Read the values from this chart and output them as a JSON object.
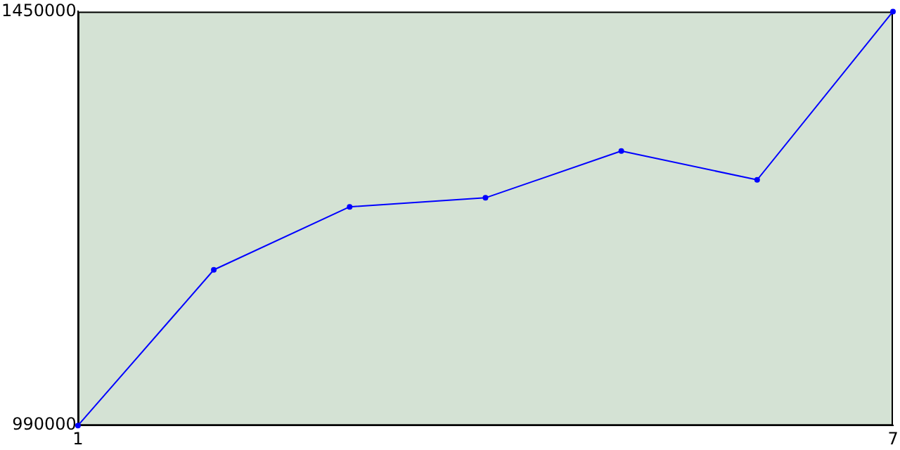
{
  "chart_data": {
    "type": "line",
    "x": [
      1,
      2,
      3,
      4,
      5,
      6,
      7
    ],
    "series": [
      {
        "color": "#0000ff",
        "values": [
          990000,
          1163000,
          1233000,
          1243000,
          1295000,
          1263000,
          1450000
        ]
      }
    ],
    "xlim": [
      1,
      7
    ],
    "xticks": [
      1,
      7
    ],
    "ylim": [
      990000,
      1450000
    ],
    "yticks": [
      990000,
      1450000
    ],
    "grid": false,
    "legend": false,
    "marker": "circle",
    "line_style": "solid"
  }
}
